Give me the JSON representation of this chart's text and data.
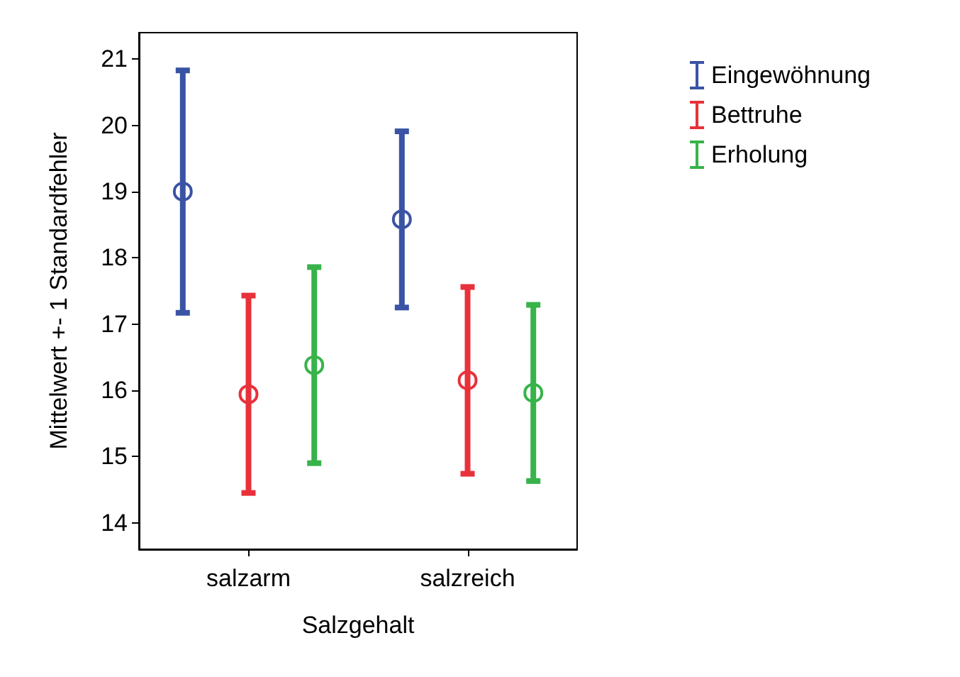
{
  "chart_data": {
    "type": "scatter",
    "xlabel": "Salzgehalt",
    "ylabel": "Mittelwert +- 1 Standardfehler",
    "categories": [
      "salzarm",
      "salzreich"
    ],
    "series": [
      {
        "name": "Eingewöhnung",
        "color": "#3a53a4",
        "values": [
          19.0,
          18.58
        ],
        "errors": [
          1.83,
          1.33
        ]
      },
      {
        "name": "Bettruhe",
        "color": "#e8313a",
        "values": [
          15.94,
          16.15
        ],
        "errors": [
          1.49,
          1.41
        ]
      },
      {
        "name": "Erholung",
        "color": "#37b34a",
        "values": [
          16.38,
          15.96
        ],
        "errors": [
          1.48,
          1.33
        ]
      }
    ],
    "ylim": [
      13.6,
      21.4
    ],
    "yticks": [
      14,
      15,
      16,
      17,
      18,
      19,
      20,
      21
    ],
    "grid": false,
    "legend": "top right",
    "marker": "circle"
  }
}
